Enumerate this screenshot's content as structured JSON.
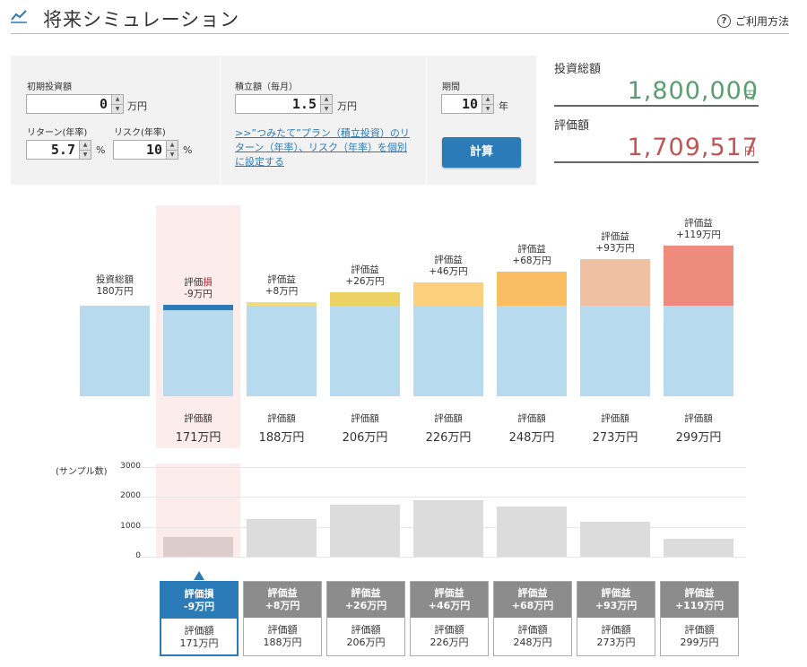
{
  "header": {
    "title": "将来シミュレーション",
    "help": "ご利用方法"
  },
  "form": {
    "initial": {
      "label": "初期投資額",
      "value": "0",
      "unit": "万円"
    },
    "return": {
      "label": "リターン(年率)",
      "value": "5.7",
      "unit": "%"
    },
    "risk": {
      "label": "リスク(年率)",
      "value": "10",
      "unit": "%"
    },
    "monthly": {
      "label": "積立額（毎月）",
      "value": "1.5",
      "unit": "万円"
    },
    "link": ">>”つみたて”プラン（積立投資）のリターン（年率）、リスク（年率）を個別に設定する",
    "period": {
      "label": "期間",
      "value": "10",
      "unit": "年"
    },
    "calc_button": "計算"
  },
  "totals": {
    "invest_label": "投資総額",
    "invest_value": "1,800,000",
    "invest_unit": "円",
    "eval_label": "評価額",
    "eval_value": "1,709,517",
    "eval_unit": "円"
  },
  "colors": {
    "base": "#b8daee",
    "accent": "#2b7bb9",
    "invest_green": "#5a9e6f",
    "eval_red": "#c05555"
  },
  "chart_data": {
    "type": "bar",
    "unit": "万円",
    "invest_bar": {
      "label": "投資総額",
      "value": "180万円",
      "amount": 180
    },
    "scenarios": [
      {
        "label": "評価損",
        "diff": "-9万円",
        "value": "171万円",
        "eval_label": "評価額",
        "amount": 171,
        "gain": -9,
        "color": "#2b7bb9",
        "samples": 650
      },
      {
        "label": "評価益",
        "diff": "+8万円",
        "value": "188万円",
        "eval_label": "評価額",
        "amount": 188,
        "gain": 8,
        "color": "#f0dc7a",
        "samples": 1250
      },
      {
        "label": "評価益",
        "diff": "+26万円",
        "value": "206万円",
        "eval_label": "評価額",
        "amount": 206,
        "gain": 26,
        "color": "#ebd262",
        "samples": 1750
      },
      {
        "label": "評価益",
        "diff": "+46万円",
        "value": "226万円",
        "eval_label": "評価額",
        "amount": 226,
        "gain": 46,
        "color": "#fdd07f",
        "samples": 1880
      },
      {
        "label": "評価益",
        "diff": "+68万円",
        "value": "248万円",
        "eval_label": "評価額",
        "amount": 248,
        "gain": 68,
        "color": "#fbbd62",
        "samples": 1690
      },
      {
        "label": "評価益",
        "diff": "+93万円",
        "value": "273万円",
        "eval_label": "評価額",
        "amount": 273,
        "gain": 93,
        "color": "#efc0a2",
        "samples": 1170
      },
      {
        "label": "評価益",
        "diff": "+119万円",
        "value": "299万円",
        "eval_label": "評価額",
        "amount": 299,
        "gain": 119,
        "color": "#ef8b7d",
        "samples": 600
      }
    ],
    "sample_axis": {
      "label": "(サンプル数)",
      "ticks": [
        "3000",
        "2000",
        "1000",
        "0"
      ],
      "ylim": [
        0,
        3000
      ]
    },
    "selected_index": 0
  }
}
